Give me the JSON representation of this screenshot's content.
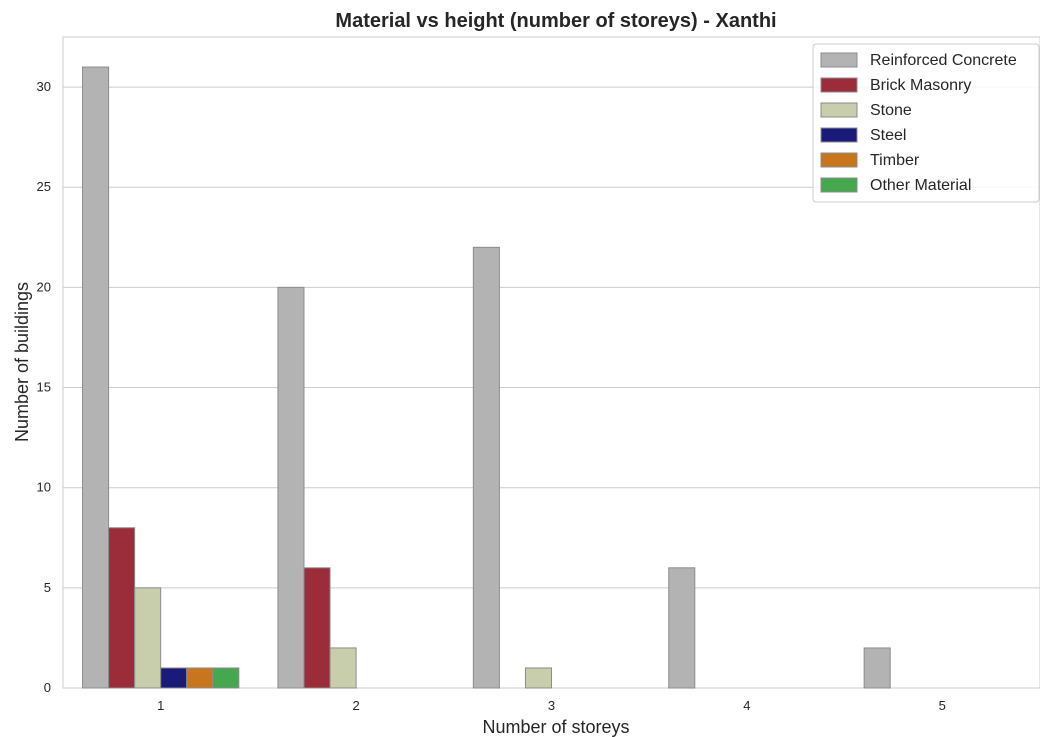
{
  "chart_data": {
    "type": "bar",
    "title": "Material vs height (number of storeys) - Xanthi",
    "xlabel": "Number of storeys",
    "ylabel": "Number of buildings",
    "categories": [
      "1",
      "2",
      "3",
      "4",
      "5"
    ],
    "ylim": [
      0,
      32.5
    ],
    "yticks": [
      "0",
      "5",
      "10",
      "15",
      "20",
      "25",
      "30"
    ],
    "grid": "horizontal",
    "legend_position": "top-right",
    "series": [
      {
        "name": "Reinforced Concrete",
        "color": "#b3b3b3",
        "values": [
          31,
          20,
          22,
          6,
          2
        ]
      },
      {
        "name": "Brick Masonry",
        "color": "#9b2d3a",
        "values": [
          8,
          6,
          0,
          0,
          0
        ]
      },
      {
        "name": "Stone",
        "color": "#c8cdab",
        "values": [
          5,
          2,
          1,
          0,
          0
        ]
      },
      {
        "name": "Steel",
        "color": "#1a1a7a",
        "values": [
          1,
          0,
          0,
          0,
          0
        ]
      },
      {
        "name": "Timber",
        "color": "#c8761e",
        "values": [
          1,
          0,
          0,
          0,
          0
        ]
      },
      {
        "name": "Other Material",
        "color": "#45a84f",
        "values": [
          1,
          0,
          0,
          0,
          0
        ]
      }
    ]
  }
}
